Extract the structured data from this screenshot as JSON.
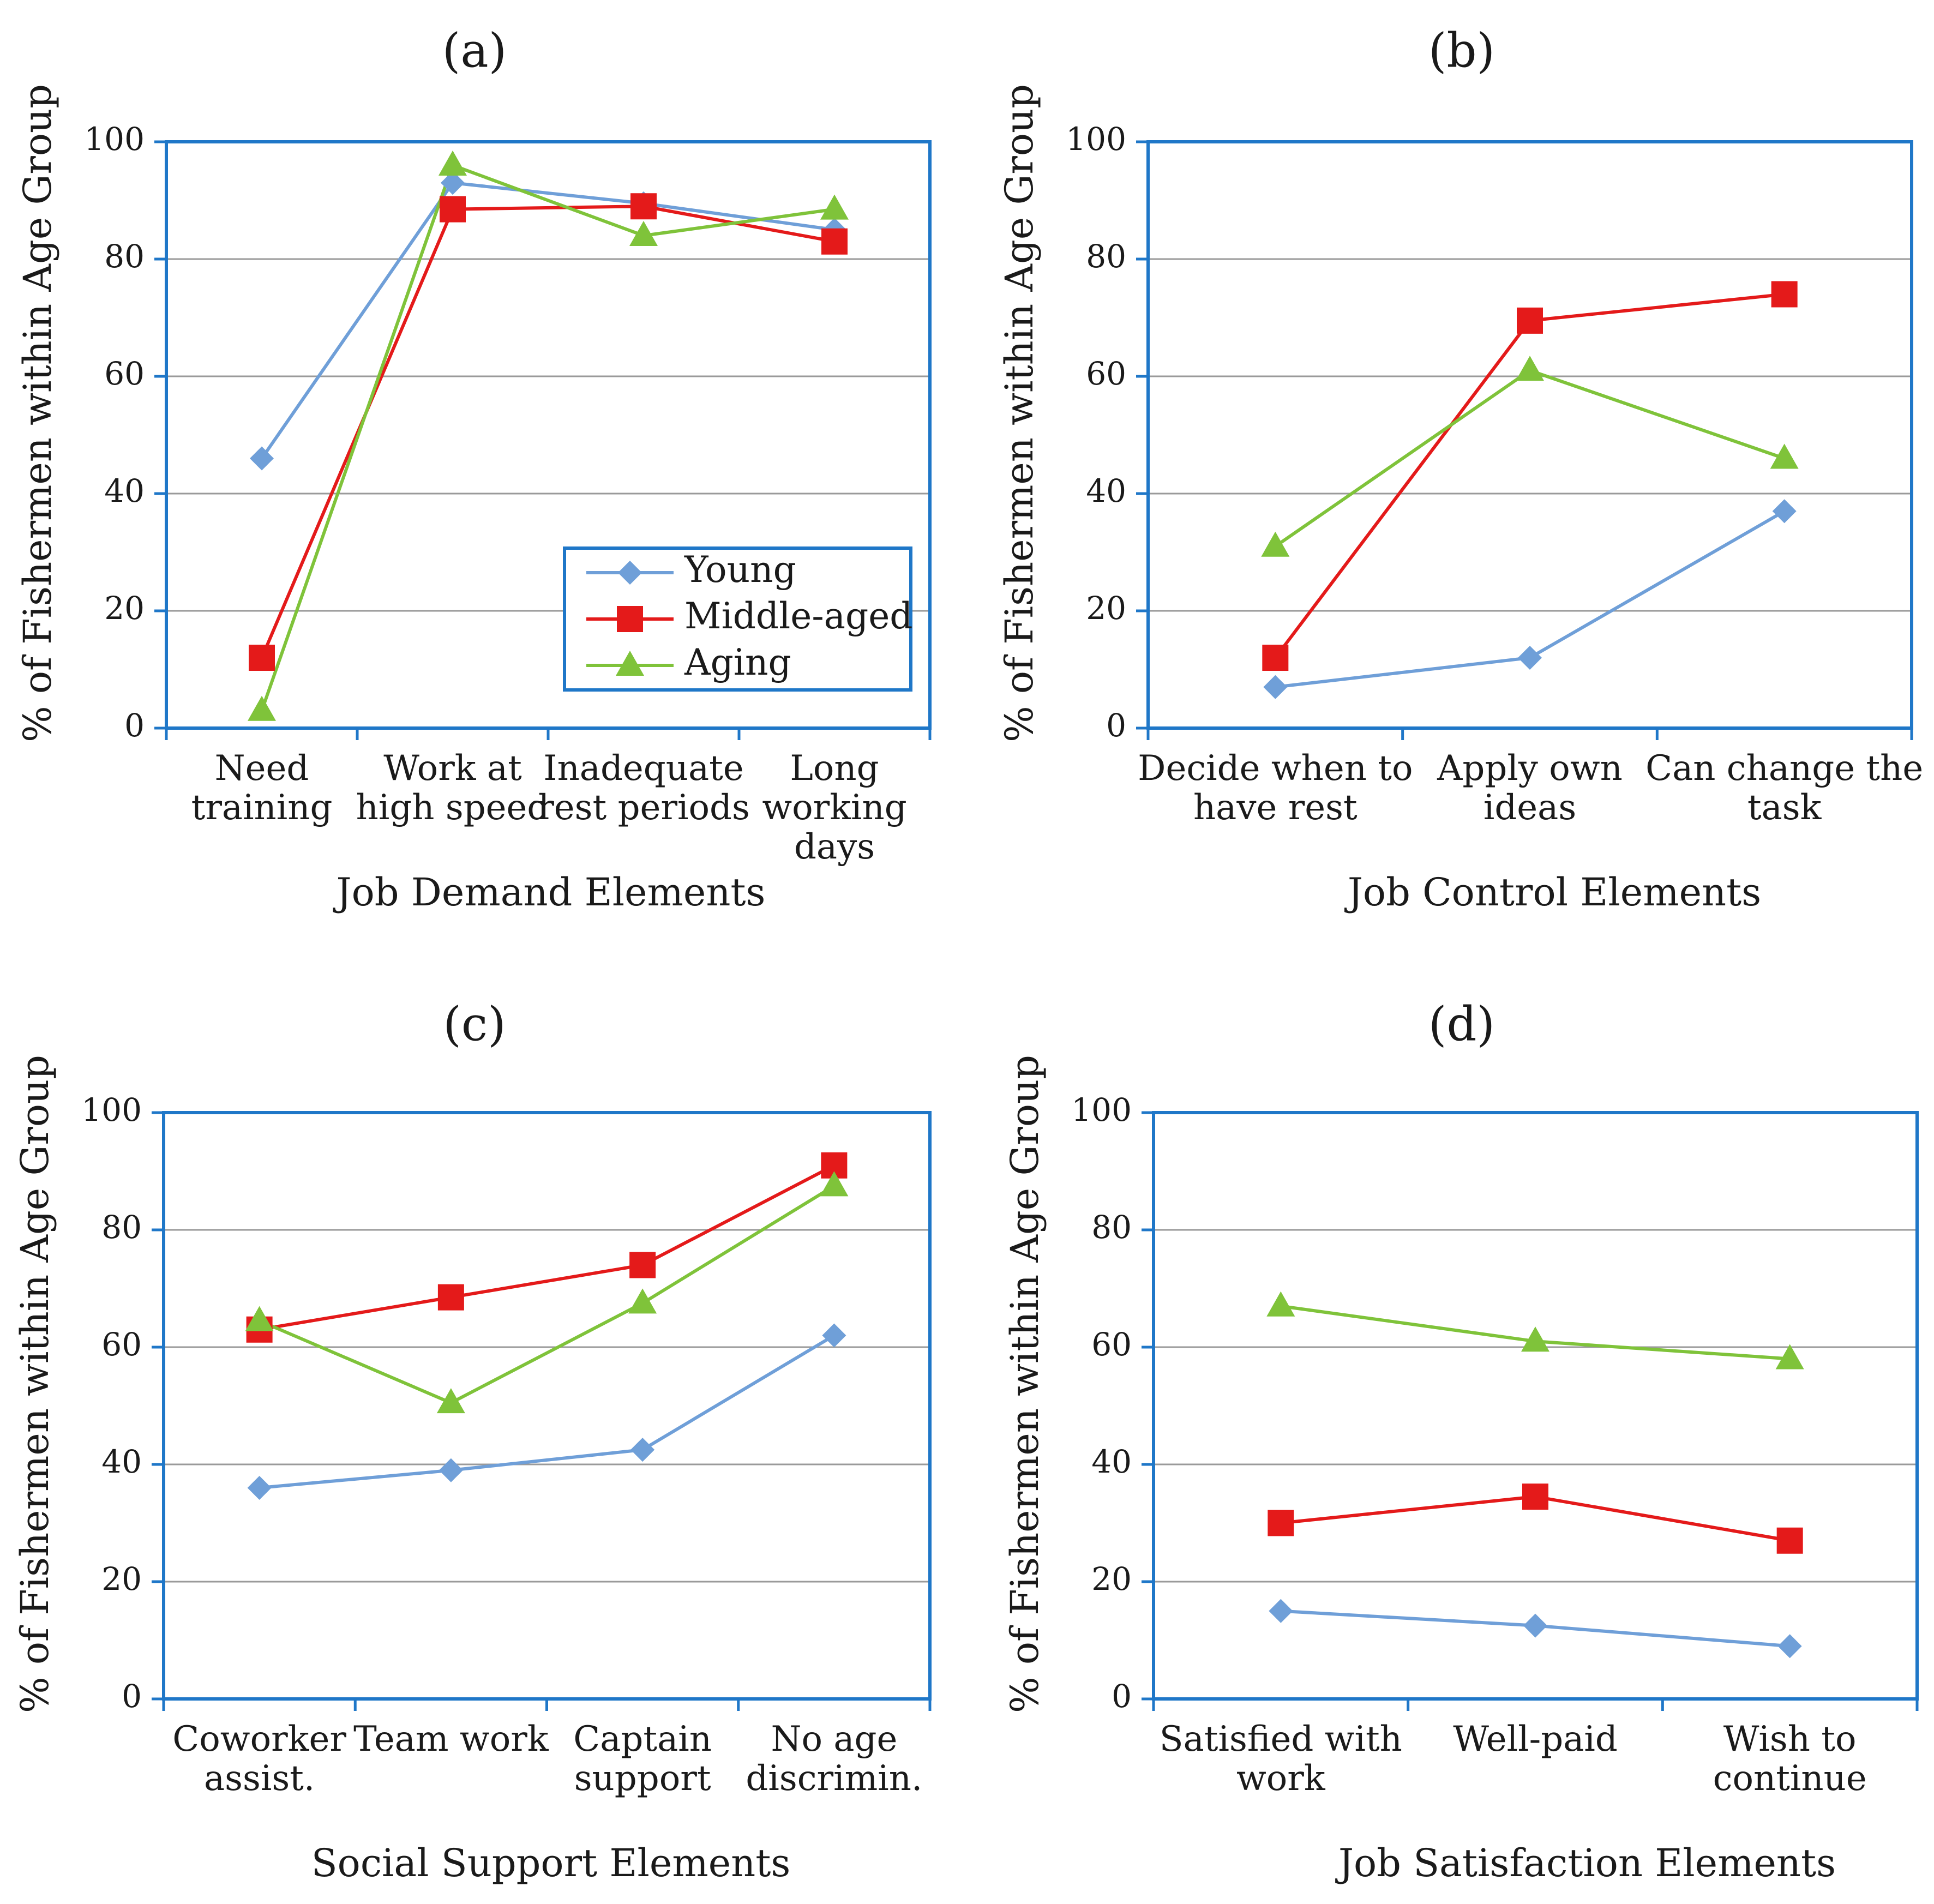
{
  "figure": {
    "colors": {
      "frame": "#1f77c8",
      "grid": "#9a9a9a",
      "young": "#6f9fd8",
      "middle": "#e41a1a",
      "aging": "#7fc33a"
    }
  },
  "chart_data": [
    {
      "type": "line",
      "panel_label": "(a)",
      "title": "(a)",
      "xlabel": "Job Demand Elements",
      "ylabel": "% of Fishermen within Age Group",
      "ylim": [
        0,
        100
      ],
      "yticks": [
        "0",
        "20",
        "40",
        "60",
        "80",
        "100"
      ],
      "categories": [
        [
          "Need",
          "training"
        ],
        [
          "Work at",
          "high speed"
        ],
        [
          "Inadequate",
          "rest periods"
        ],
        [
          "Long",
          "working",
          "days"
        ]
      ],
      "series": [
        {
          "name": "Young",
          "key": "young",
          "marker": "diamond",
          "values": [
            46,
            93,
            89.5,
            85
          ]
        },
        {
          "name": "Middle-aged",
          "key": "middle",
          "marker": "square",
          "values": [
            12,
            88.5,
            89,
            83
          ]
        },
        {
          "name": "Aging",
          "key": "aging",
          "marker": "triangle",
          "values": [
            3,
            96,
            84,
            88.5
          ]
        }
      ],
      "legend": {
        "position": "bottom-right",
        "entries": [
          "Young",
          "Middle-aged",
          "Aging"
        ]
      },
      "grid": true
    },
    {
      "type": "line",
      "panel_label": "(b)",
      "title": "(b)",
      "xlabel": "Job Control Elements",
      "ylabel": "% of Fishermen within Age Group",
      "ylim": [
        0,
        100
      ],
      "yticks": [
        "0",
        "20",
        "40",
        "60",
        "80",
        "100"
      ],
      "categories": [
        [
          "Decide when to",
          "have rest"
        ],
        [
          "Apply own",
          "ideas"
        ],
        [
          "Can change the",
          "task"
        ]
      ],
      "series": [
        {
          "name": "Young",
          "key": "young",
          "marker": "diamond",
          "values": [
            7,
            12,
            37
          ]
        },
        {
          "name": "Middle-aged",
          "key": "middle",
          "marker": "square",
          "values": [
            12,
            69.5,
            74
          ]
        },
        {
          "name": "Aging",
          "key": "aging",
          "marker": "triangle",
          "values": [
            31,
            61,
            46
          ]
        }
      ],
      "grid": true
    },
    {
      "type": "line",
      "panel_label": "(c)",
      "title": "(c)",
      "xlabel": "Social Support Elements",
      "ylabel": "% of Fishermen within Age Group",
      "ylim": [
        0,
        100
      ],
      "yticks": [
        "0",
        "20",
        "40",
        "60",
        "80",
        "100"
      ],
      "categories": [
        [
          "Coworker",
          "assist."
        ],
        [
          "Team work"
        ],
        [
          "Captain",
          "support"
        ],
        [
          "No age",
          "discrimin."
        ]
      ],
      "series": [
        {
          "name": "Young",
          "key": "young",
          "marker": "diamond",
          "values": [
            36,
            39,
            42.5,
            62
          ]
        },
        {
          "name": "Middle-aged",
          "key": "middle",
          "marker": "square",
          "values": [
            63,
            68.5,
            74,
            91
          ]
        },
        {
          "name": "Aging",
          "key": "aging",
          "marker": "triangle",
          "values": [
            64.5,
            50.5,
            67.5,
            87.5
          ]
        }
      ],
      "grid": true
    },
    {
      "type": "line",
      "panel_label": "(d)",
      "title": "(d)",
      "xlabel": "Job Satisfaction Elements",
      "ylabel": "% of Fishermen within Age Group",
      "ylim": [
        0,
        100
      ],
      "yticks": [
        "0",
        "20",
        "40",
        "60",
        "80",
        "100"
      ],
      "categories": [
        [
          "Satisfied with",
          "work"
        ],
        [
          "Well-paid"
        ],
        [
          "Wish to",
          "continue"
        ]
      ],
      "series": [
        {
          "name": "Young",
          "key": "young",
          "marker": "diamond",
          "values": [
            15,
            12.5,
            9
          ]
        },
        {
          "name": "Middle-aged",
          "key": "middle",
          "marker": "square",
          "values": [
            30,
            34.5,
            27
          ]
        },
        {
          "name": "Aging",
          "key": "aging",
          "marker": "triangle",
          "values": [
            67,
            61,
            58
          ]
        }
      ],
      "grid": true
    }
  ]
}
